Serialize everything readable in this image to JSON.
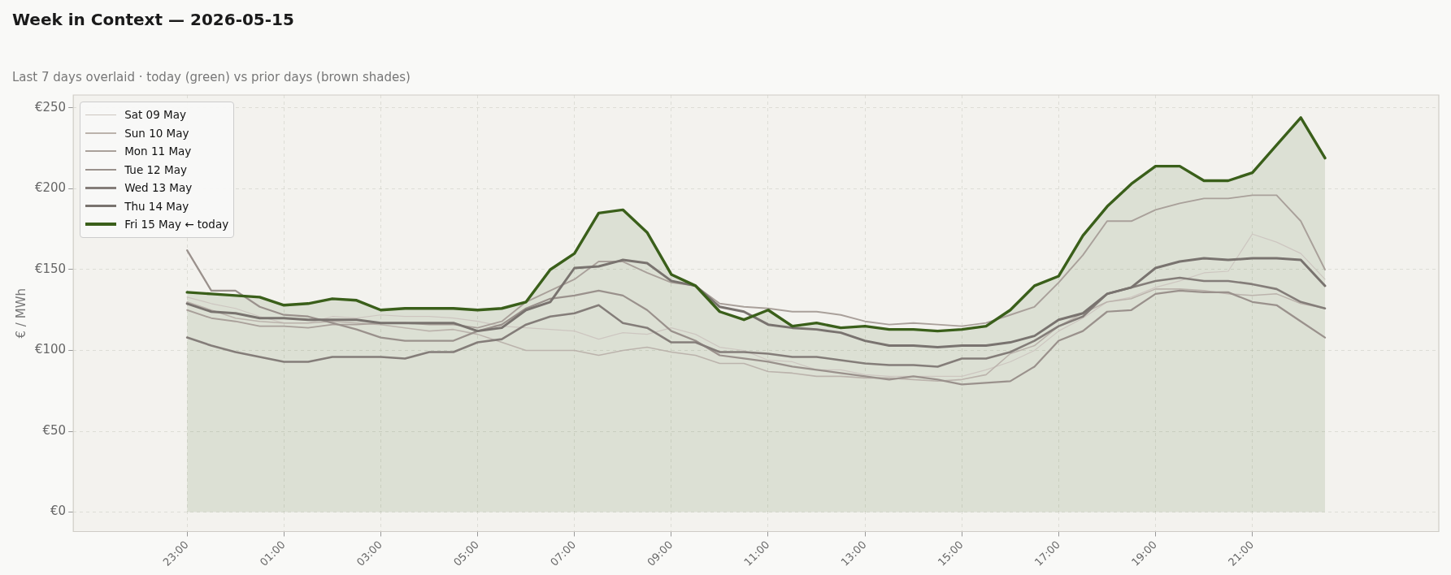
{
  "chart_data": {
    "type": "line",
    "title": "Week in Context — 2026-05-15",
    "subtitle": "Last 7 days overlaid  ·  today (green) vs prior days (brown shades)",
    "ylabel": "€ / MWh",
    "categories": [
      "23:00",
      null,
      null,
      null,
      "01:00",
      null,
      null,
      null,
      "03:00",
      null,
      null,
      null,
      "05:00",
      null,
      null,
      null,
      "07:00",
      null,
      null,
      null,
      "09:00",
      null,
      null,
      null,
      "11:00",
      null,
      null,
      null,
      "13:00",
      null,
      null,
      null,
      "15:00",
      null,
      null,
      null,
      "17:00",
      null,
      null,
      null,
      "19:00",
      null,
      null,
      null,
      "21:00",
      null,
      null,
      null
    ],
    "series": [
      {
        "name": "Sat 09 May",
        "color": "#cdc6c0",
        "values": [
          133,
          129,
          126,
          121,
          117,
          117,
          121,
          120,
          122,
          121,
          121,
          120,
          118,
          115,
          114,
          113,
          112,
          107,
          111,
          110,
          114,
          110,
          102,
          100,
          94,
          93,
          88,
          88,
          85,
          84,
          84,
          84,
          84,
          88,
          93,
          100,
          112,
          120,
          130,
          133,
          139,
          143,
          148,
          149,
          172,
          167,
          160,
          144
        ]
      },
      {
        "name": "Sun 10 May",
        "color": "#bbb3ac",
        "values": [
          130,
          125,
          120,
          118,
          117,
          117,
          118,
          117,
          116,
          114,
          112,
          113,
          110,
          105,
          100,
          100,
          100,
          97,
          100,
          102,
          99,
          97,
          92,
          92,
          87,
          86,
          84,
          84,
          83,
          83,
          82,
          81,
          82,
          85,
          98,
          103,
          115,
          123,
          130,
          132,
          138,
          138,
          137,
          135,
          134,
          135,
          129,
          126
        ]
      },
      {
        "name": "Mon 11 May",
        "color": "#a9a09a",
        "values": [
          125,
          120,
          118,
          115,
          115,
          114,
          116,
          116,
          117,
          117,
          116,
          116,
          114,
          118,
          130,
          137,
          144,
          155,
          155,
          148,
          142,
          140,
          129,
          127,
          126,
          124,
          124,
          122,
          118,
          116,
          117,
          116,
          115,
          117,
          122,
          127,
          142,
          159,
          180,
          180,
          187,
          191,
          194,
          194,
          196,
          196,
          180,
          150
        ]
      },
      {
        "name": "Tue 12 May",
        "color": "#9a918c",
        "values": [
          162,
          137,
          137,
          127,
          122,
          121,
          117,
          113,
          108,
          106,
          106,
          106,
          112,
          116,
          126,
          132,
          134,
          137,
          134,
          125,
          112,
          106,
          97,
          95,
          93,
          90,
          88,
          86,
          84,
          82,
          84,
          82,
          79,
          80,
          81,
          90,
          106,
          112,
          124,
          125,
          135,
          137,
          136,
          136,
          130,
          128,
          118,
          108
        ]
      },
      {
        "name": "Wed 13 May",
        "color": "#847d79",
        "values": [
          108,
          103,
          99,
          96,
          93,
          93,
          96,
          96,
          96,
          95,
          99,
          99,
          105,
          107,
          116,
          121,
          123,
          128,
          117,
          114,
          105,
          105,
          99,
          99,
          98,
          96,
          96,
          94,
          92,
          91,
          91,
          90,
          95,
          95,
          99,
          106,
          115,
          121,
          135,
          139,
          143,
          145,
          143,
          143,
          141,
          138,
          130,
          126
        ]
      },
      {
        "name": "Thu 14 May",
        "color": "#79736f",
        "values": [
          129,
          124,
          123,
          120,
          120,
          119,
          119,
          119,
          117,
          117,
          117,
          117,
          112,
          114,
          125,
          130,
          151,
          152,
          156,
          154,
          143,
          140,
          127,
          124,
          116,
          114,
          113,
          111,
          106,
          103,
          103,
          102,
          103,
          103,
          105,
          109,
          119,
          123,
          135,
          139,
          151,
          155,
          157,
          156,
          157,
          157,
          156,
          140
        ]
      },
      {
        "name": "Fri 15 May  ← today",
        "color": "#3a5f1a",
        "type": "area",
        "values": [
          136,
          135,
          134,
          133,
          128,
          129,
          132,
          131,
          125,
          126,
          126,
          126,
          125,
          126,
          130,
          150,
          160,
          185,
          187,
          173,
          147,
          140,
          124,
          119,
          125,
          115,
          117,
          114,
          115,
          113,
          113,
          112,
          113,
          115,
          125,
          140,
          146,
          171,
          189,
          203,
          214,
          214,
          205,
          205,
          210,
          227,
          244,
          219
        ]
      }
    ],
    "ylim": [
      -12,
      258
    ],
    "yticks": [
      {
        "value": 0,
        "label": "€0"
      },
      {
        "value": 50,
        "label": "€50"
      },
      {
        "value": 100,
        "label": "€100"
      },
      {
        "value": 150,
        "label": "€150"
      },
      {
        "value": 200,
        "label": "€200"
      },
      {
        "value": 250,
        "label": "€250"
      }
    ],
    "grid": true,
    "legend": "top left"
  }
}
